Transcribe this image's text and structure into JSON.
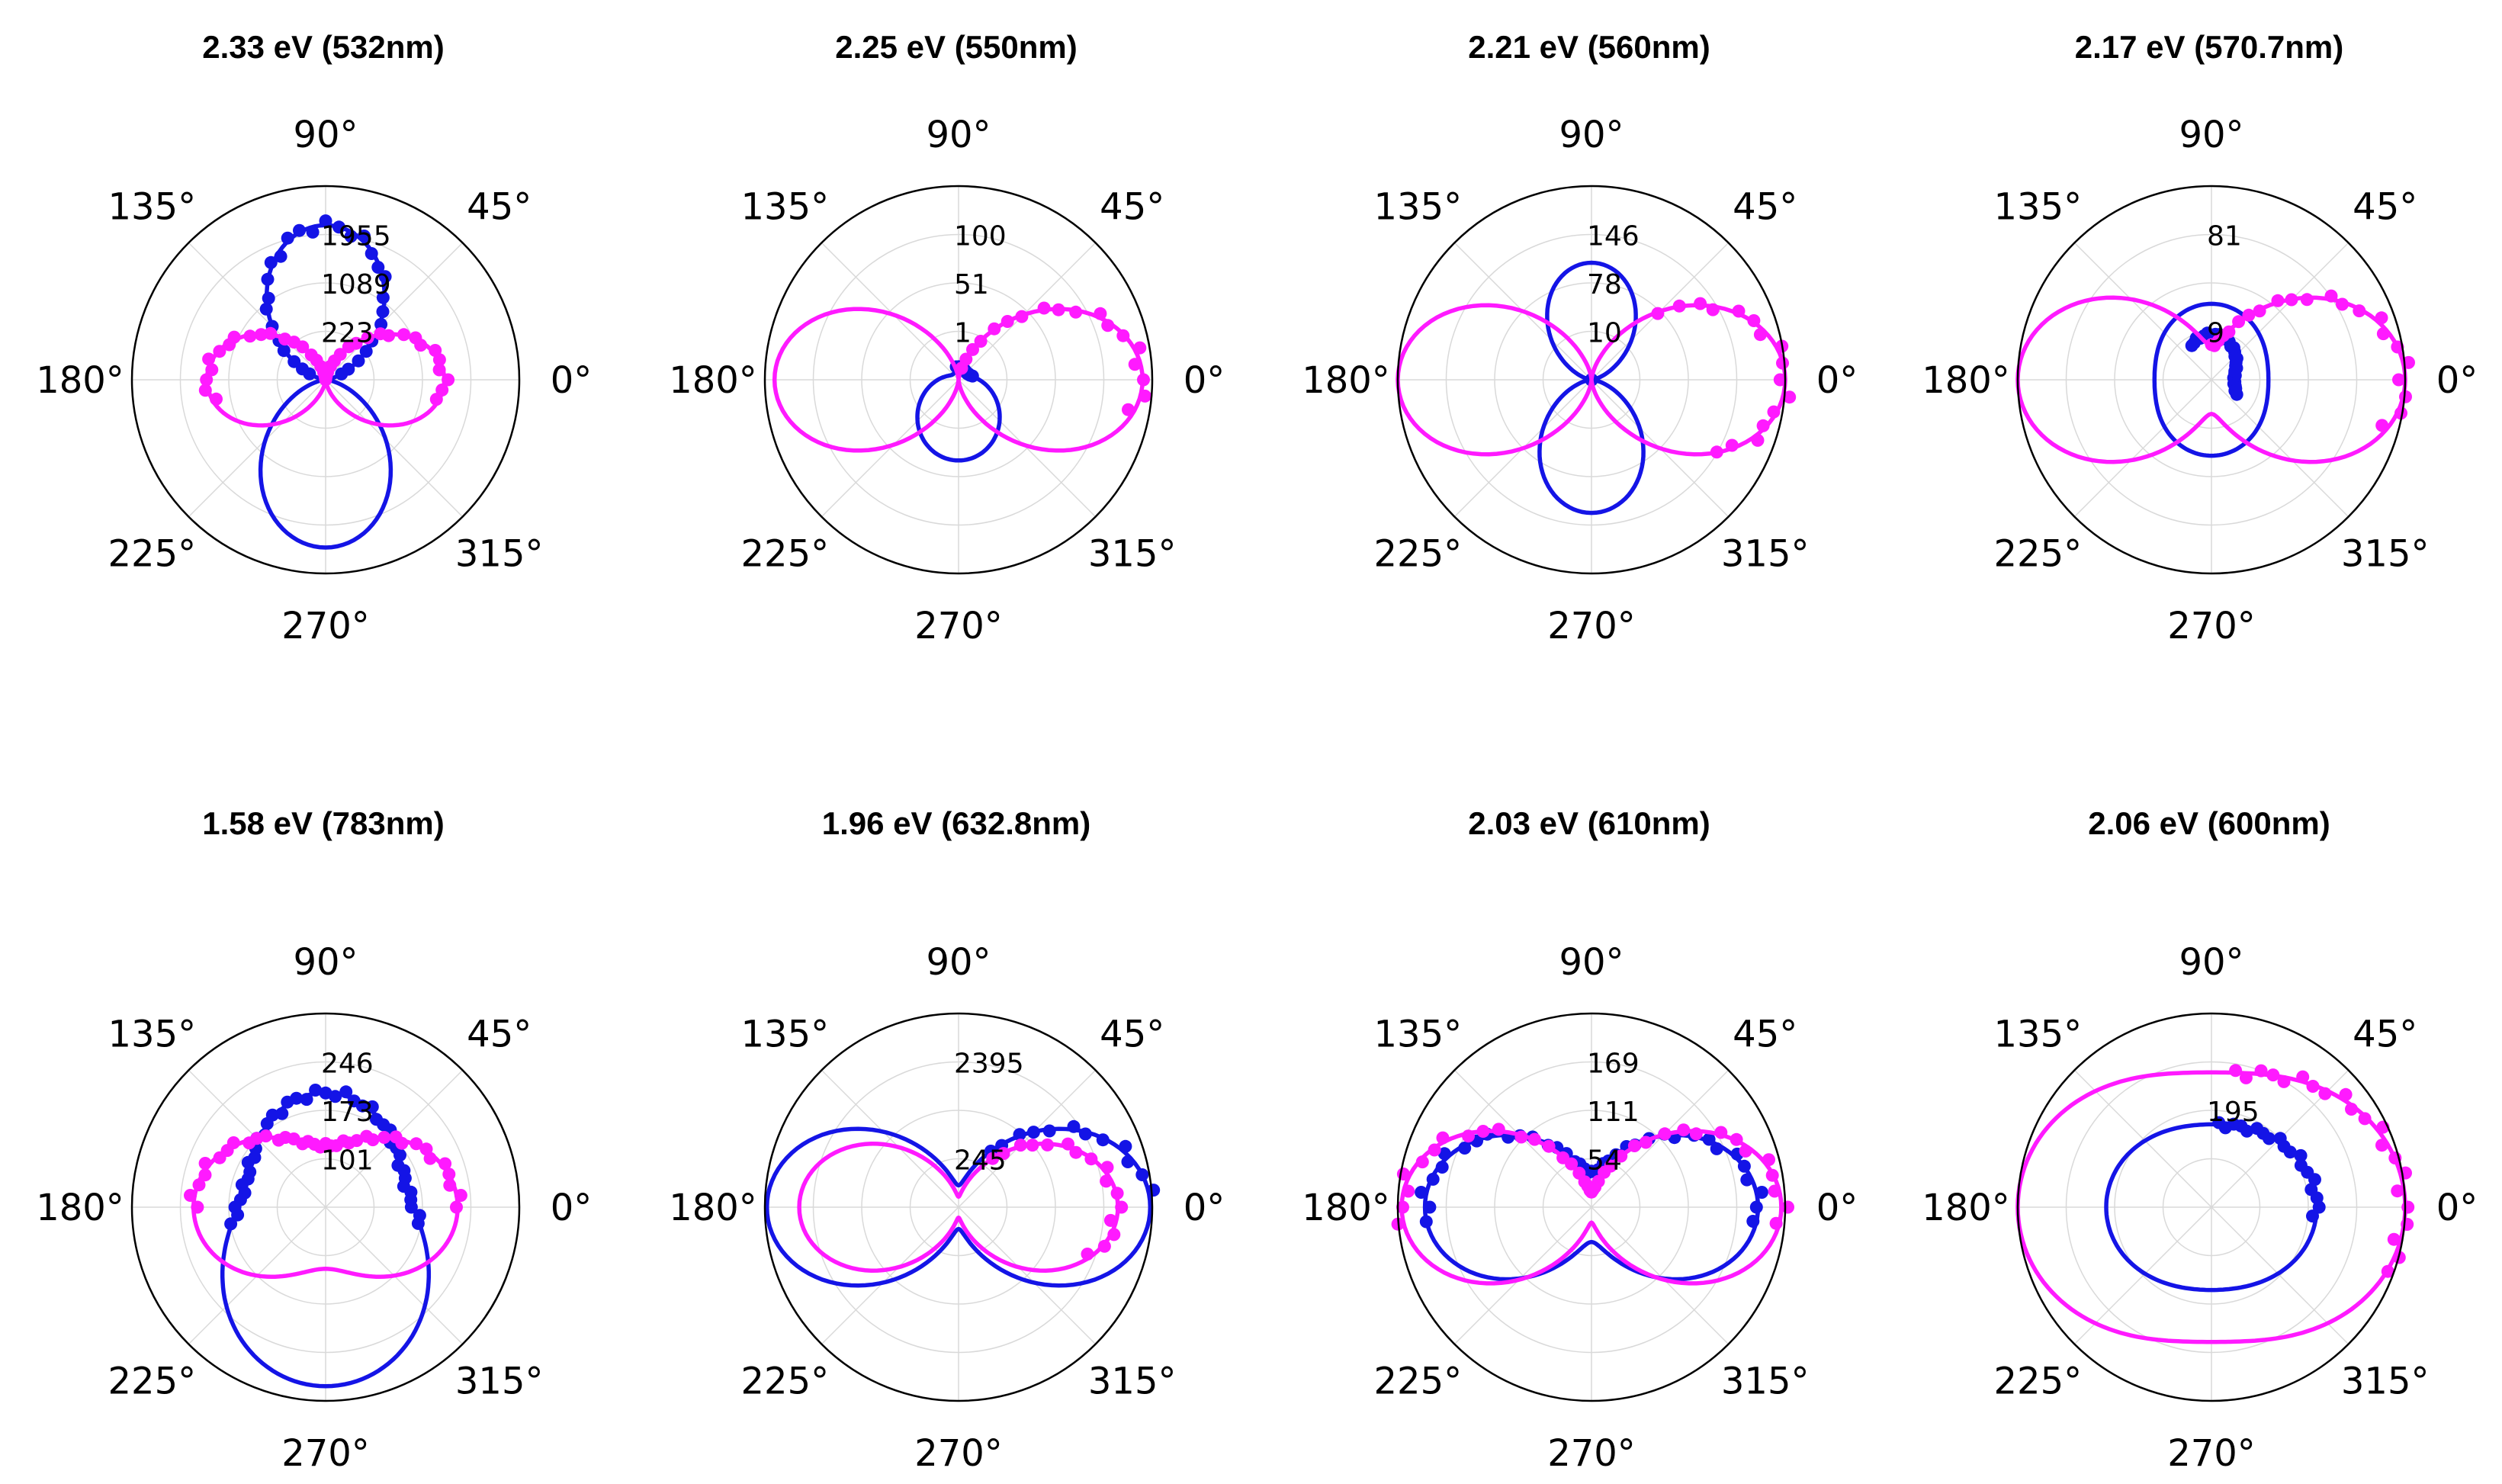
{
  "chart_data": [
    {
      "type": "polar",
      "title": "2.33 eV (532nm)",
      "angle_ticks": [
        "0°",
        "45°",
        "90°",
        "135°",
        "180°",
        "225°",
        "270°",
        "315°"
      ],
      "r_ticks": [
        "223",
        "1089",
        "1955"
      ],
      "r_max": 2350,
      "series": [
        {
          "color": "#1414e6",
          "fit": {
            "A": 0,
            "B": 1955,
            "C": 0,
            "D": -80,
            "a": 0
          },
          "points_angle_range": [
            20,
            160
          ],
          "points": {
            "A": 0,
            "B": 1955,
            "C": 0,
            "D": -80,
            "a": 0
          }
        },
        {
          "color": "#ff1aff",
          "fit": {
            "A": 0,
            "B": 0,
            "C": 1440,
            "D": 0,
            "a": 0
          },
          "points_angle_range": [
            -10,
            190
          ],
          "points": {
            "A": 0,
            "B": 0,
            "C": 1440,
            "D": 0,
            "a": 0
          }
        }
      ]
    },
    {
      "type": "polar",
      "title": "2.25 eV (550nm)",
      "angle_ticks": [
        "0°",
        "45°",
        "90°",
        "135°",
        "180°",
        "225°",
        "270°",
        "315°"
      ],
      "r_ticks": [
        "1",
        "51",
        "100"
      ],
      "r_max": 300,
      "series": [
        {
          "color": "#1414e6",
          "fit": {
            "A": 32,
            "B": 38,
            "C": 0,
            "D": -55,
            "a": 0
          },
          "points_angle_range": [
            15,
            100
          ],
          "points": {
            "A": 30,
            "B": 30,
            "C": 0,
            "D": -40,
            "a": 0
          }
        },
        {
          "color": "#ff1aff",
          "fit": {
            "A": 0,
            "B": 0,
            "C": 285,
            "D": 0,
            "a": 0
          },
          "points_angle_range": [
            -10,
            75
          ],
          "points": {
            "A": 0,
            "B": 0,
            "C": 285,
            "D": 0,
            "a": 0
          }
        }
      ]
    },
    {
      "type": "polar",
      "title": "2.21 eV (560nm)",
      "angle_ticks": [
        "0°",
        "45°",
        "90°",
        "135°",
        "180°",
        "225°",
        "270°",
        "315°"
      ],
      "r_ticks": [
        "10",
        "78",
        "146"
      ],
      "r_max": 240,
      "series": [
        {
          "color": "#1414e6",
          "fit": {
            "A": 0,
            "B": 155,
            "C": 0,
            "D": -10,
            "a": 0
          },
          "points_angle_range": [
            -60,
            95
          ],
          "points": {
            "A": 0,
            "B": 0,
            "C": 0,
            "D": 0,
            "a": 0
          }
        },
        {
          "color": "#ff1aff",
          "fit": {
            "A": 0,
            "B": 0,
            "C": 240,
            "D": 0,
            "a": 0
          },
          "points_angle_range": [
            -30,
            45
          ],
          "points": {
            "A": 0,
            "B": 0,
            "C": 240,
            "D": 0,
            "a": 0
          }
        }
      ]
    },
    {
      "type": "polar",
      "title": "2.17 eV (570.7nm)",
      "angle_ticks": [
        "0°",
        "45°",
        "90°",
        "135°",
        "180°",
        "225°",
        "270°",
        "315°"
      ],
      "r_ticks": [
        "9",
        "81"
      ],
      "r_max": 255,
      "series": [
        {
          "color": "#1414e6",
          "fit": {
            "A": 75,
            "B": 25,
            "C": 0,
            "D": 0,
            "a": 0
          },
          "points_angle_range": [
            -30,
            120
          ],
          "points": {
            "A": 30,
            "B": 30,
            "C": 0,
            "D": 0,
            "a": 0
          }
        },
        {
          "color": "#ff1aff",
          "fit": {
            "A": 45,
            "B": 0,
            "C": 210,
            "D": 0,
            "a": 0
          },
          "points_angle_range": [
            -15,
            90
          ],
          "points": {
            "A": 45,
            "B": 0,
            "C": 210,
            "D": 0,
            "a": 0
          }
        }
      ]
    },
    {
      "type": "polar",
      "title": "1.58 eV (783nm)",
      "angle_ticks": [
        "0°",
        "45°",
        "90°",
        "135°",
        "180°",
        "225°",
        "270°",
        "315°"
      ],
      "r_ticks": [
        "101",
        "173",
        "246"
      ],
      "r_max": 330,
      "series": [
        {
          "color": "#1414e6",
          "fit": {
            "A": 150,
            "B": 100,
            "C": 0,
            "D": -55,
            "a": 0
          },
          "points_angle_range": [
            -10,
            190
          ],
          "points": {
            "A": 150,
            "B": 100,
            "C": 0,
            "D": -55,
            "a": 0
          }
        },
        {
          "color": "#ff1aff",
          "fit": {
            "A": 105,
            "B": 0,
            "C": 120,
            "D": 0,
            "a": 0
          },
          "points_angle_range": [
            0,
            180
          ],
          "points": {
            "A": 105,
            "B": 0,
            "C": 120,
            "D": 0,
            "a": 0
          }
        }
      ]
    },
    {
      "type": "polar",
      "title": "1.96 eV (632.8nm)",
      "angle_ticks": [
        "0°",
        "45°",
        "90°",
        "135°",
        "180°",
        "225°",
        "270°",
        "315°"
      ],
      "r_ticks": [
        "245",
        "2395"
      ],
      "r_max": 2395,
      "series": [
        {
          "color": "#1414e6",
          "fit": {
            "A": 270,
            "B": 0,
            "C": 2100,
            "D": 0,
            "a": 0
          },
          "points_angle_range": [
            5,
            60
          ],
          "points": {
            "A": 270,
            "B": 0,
            "C": 2100,
            "D": 0,
            "a": 0
          }
        },
        {
          "color": "#ff1aff",
          "fit": {
            "A": 130,
            "B": 0,
            "C": 1840,
            "D": 0,
            "a": 0
          },
          "points_angle_range": [
            -20,
            55
          ],
          "points": {
            "A": 130,
            "B": 0,
            "C": 1840,
            "D": 0,
            "a": 0
          }
        }
      ]
    },
    {
      "type": "polar",
      "title": "2.03 eV (610nm)",
      "angle_ticks": [
        "0°",
        "45°",
        "90°",
        "135°",
        "180°",
        "225°",
        "270°",
        "315°"
      ],
      "r_ticks": [
        "54",
        "111",
        "169"
      ],
      "r_max": 250,
      "series": [
        {
          "color": "#1414e6",
          "fit": {
            "A": 45,
            "B": 0,
            "C": 170,
            "D": 0,
            "a": 0
          },
          "points_angle_range": [
            -5,
            185
          ],
          "points": {
            "A": 45,
            "B": 0,
            "C": 170,
            "D": 0,
            "a": 0
          }
        },
        {
          "color": "#ff1aff",
          "fit": {
            "A": 20,
            "B": 0,
            "C": 225,
            "D": 0,
            "a": 0
          },
          "points_angle_range": [
            -5,
            185
          ],
          "points": {
            "A": 20,
            "B": 0,
            "C": 225,
            "D": 0,
            "a": 0
          }
        }
      ]
    },
    {
      "type": "polar",
      "title": "2.06 eV (600nm)",
      "angle_ticks": [
        "0°",
        "45°",
        "90°",
        "135°",
        "180°",
        "225°",
        "270°",
        "315°"
      ],
      "r_ticks": [
        "195"
      ],
      "r_max": 690,
      "series": [
        {
          "color": "#1414e6",
          "fit": {
            "A": 295,
            "B": 0,
            "C": 80,
            "D": 0,
            "a": 0
          },
          "points_angle_range": [
            -5,
            85
          ],
          "points": {
            "A": 295,
            "B": 0,
            "C": 80,
            "D": 0,
            "a": 0
          }
        },
        {
          "color": "#ff1aff",
          "fit": {
            "A": 480,
            "B": 0,
            "C": 210,
            "D": 0,
            "a": 0
          },
          "points_angle_range": [
            -20,
            80
          ],
          "points": {
            "A": 480,
            "B": 0,
            "C": 210,
            "D": 0,
            "a": 0
          }
        }
      ]
    }
  ]
}
